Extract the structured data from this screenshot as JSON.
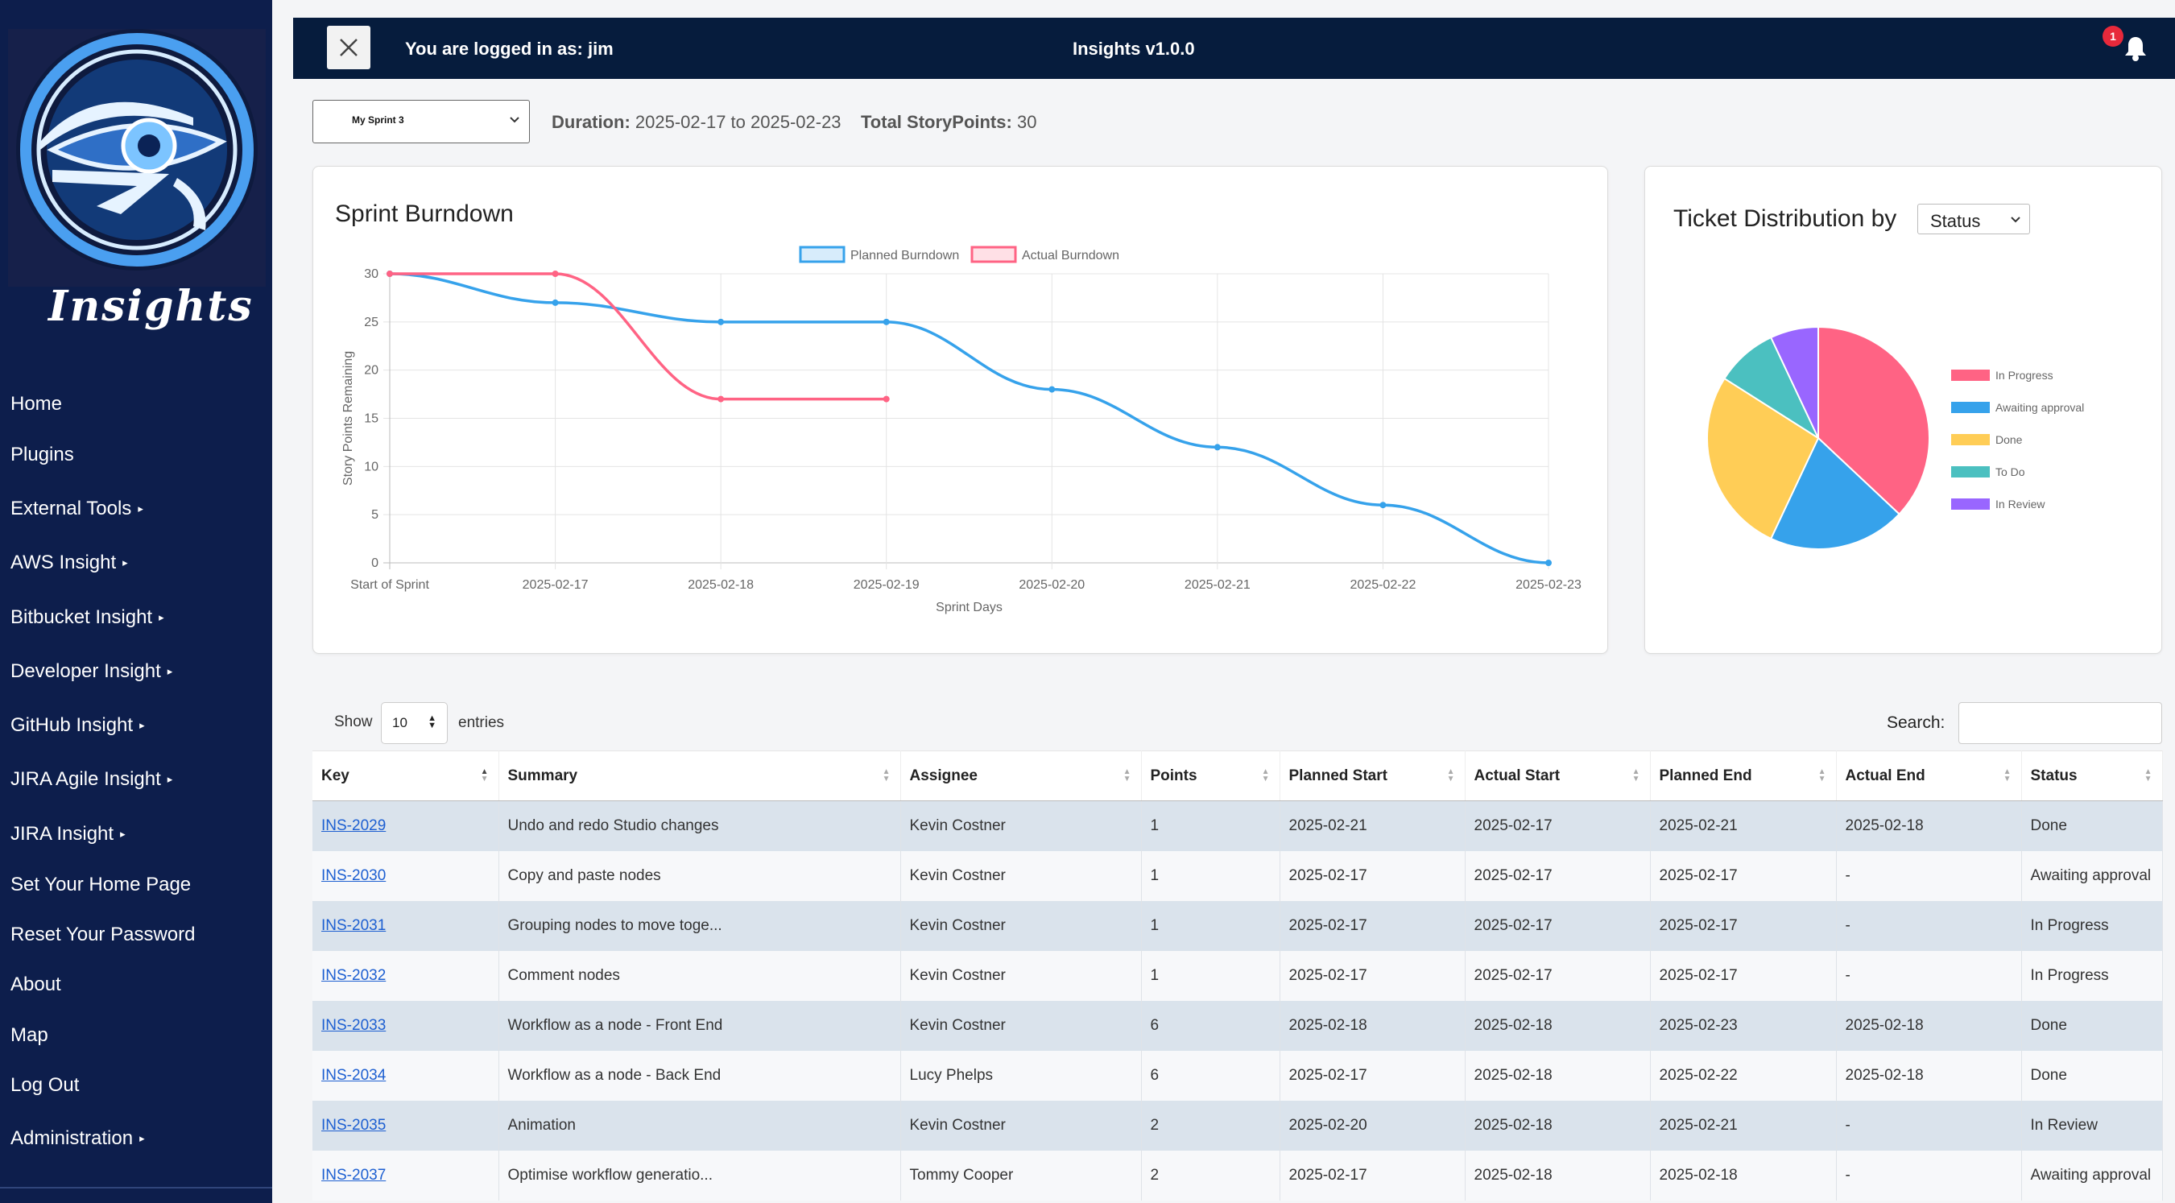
{
  "app": {
    "logo_text": "Insights",
    "login_text": "You are logged in as: jim",
    "title": "Insights v1.0.0",
    "notification_count": "1"
  },
  "sidebar": {
    "items": [
      {
        "label": "Home",
        "submenu": false
      },
      {
        "label": "Plugins",
        "submenu": false
      },
      {
        "label": "External Tools",
        "submenu": true
      },
      {
        "label": "AWS Insight",
        "submenu": true
      },
      {
        "label": "Bitbucket Insight",
        "submenu": true
      },
      {
        "label": "Developer Insight",
        "submenu": true
      },
      {
        "label": "GitHub Insight",
        "submenu": true
      },
      {
        "label": "JIRA Agile Insight",
        "submenu": true
      },
      {
        "label": "JIRA Insight",
        "submenu": true
      },
      {
        "label": "Set Your Home Page",
        "submenu": false
      },
      {
        "label": "Reset Your Password",
        "submenu": false
      },
      {
        "label": "About",
        "submenu": false
      },
      {
        "label": "Map",
        "submenu": false
      },
      {
        "label": "Log Out",
        "submenu": false
      },
      {
        "label": "Administration",
        "submenu": true
      }
    ]
  },
  "sprint": {
    "selected": "My Sprint 3",
    "duration_label": "Duration:",
    "duration_value": "2025-02-17 to 2025-02-23",
    "points_label": "Total StoryPoints:",
    "points_value": "30"
  },
  "burndown": {
    "title": "Sprint Burndown"
  },
  "distribution": {
    "title": "Ticket Distribution by",
    "selected": "Status"
  },
  "chart_data": [
    {
      "type": "line",
      "title": "Sprint Burndown",
      "xlabel": "Sprint Days",
      "ylabel": "Story Points Remaining",
      "categories": [
        "Start of Sprint",
        "2025-02-17",
        "2025-02-18",
        "2025-02-19",
        "2025-02-20",
        "2025-02-21",
        "2025-02-22",
        "2025-02-23"
      ],
      "ylim": [
        0,
        30
      ],
      "yticks": [
        0,
        5,
        10,
        15,
        20,
        25,
        30
      ],
      "grid": true,
      "legend": "top",
      "series": [
        {
          "name": "Planned Burndown",
          "color": "#36a2eb",
          "values": [
            30,
            27,
            25,
            25,
            18,
            12,
            6,
            0
          ]
        },
        {
          "name": "Actual Burndown",
          "color": "#ff6384",
          "values": [
            30,
            30,
            17,
            17,
            null,
            null,
            null,
            null
          ]
        }
      ]
    },
    {
      "type": "pie",
      "title": "",
      "legend": "right",
      "labels": [
        "In Progress",
        "Awaiting approval",
        "Done",
        "To Do",
        "In Review"
      ],
      "values": [
        37,
        20,
        27,
        9,
        7
      ],
      "colors": [
        "#ff6384",
        "#36a2eb",
        "#ffcd56",
        "#4bc0c0",
        "#9966ff"
      ]
    }
  ],
  "table": {
    "show_label": "Show",
    "length_value": "10",
    "entries_label": "entries",
    "search_label": "Search:",
    "columns": [
      "Key",
      "Summary",
      "Assignee",
      "Points",
      "Planned Start",
      "Actual Start",
      "Planned End",
      "Actual End",
      "Status"
    ],
    "rows": [
      [
        "INS-2029",
        "Undo and redo Studio changes",
        "Kevin Costner",
        "1",
        "2025-02-21",
        "2025-02-17",
        "2025-02-21",
        "2025-02-18",
        "Done"
      ],
      [
        "INS-2030",
        "Copy and paste nodes",
        "Kevin Costner",
        "1",
        "2025-02-17",
        "2025-02-17",
        "2025-02-17",
        "-",
        "Awaiting approval"
      ],
      [
        "INS-2031",
        "Grouping nodes to move toge...",
        "Kevin Costner",
        "1",
        "2025-02-17",
        "2025-02-17",
        "2025-02-17",
        "-",
        "In Progress"
      ],
      [
        "INS-2032",
        "Comment nodes",
        "Kevin Costner",
        "1",
        "2025-02-17",
        "2025-02-17",
        "2025-02-17",
        "-",
        "In Progress"
      ],
      [
        "INS-2033",
        "Workflow as a node - Front End",
        "Kevin Costner",
        "6",
        "2025-02-18",
        "2025-02-18",
        "2025-02-23",
        "2025-02-18",
        "Done"
      ],
      [
        "INS-2034",
        "Workflow as a node - Back End",
        "Lucy Phelps",
        "6",
        "2025-02-17",
        "2025-02-18",
        "2025-02-22",
        "2025-02-18",
        "Done"
      ],
      [
        "INS-2035",
        "Animation",
        "Kevin Costner",
        "2",
        "2025-02-20",
        "2025-02-18",
        "2025-02-21",
        "-",
        "In Review"
      ],
      [
        "INS-2037",
        "Optimise workflow generatio...",
        "Tommy Cooper",
        "2",
        "2025-02-17",
        "2025-02-18",
        "2025-02-18",
        "-",
        "Awaiting approval"
      ]
    ]
  }
}
